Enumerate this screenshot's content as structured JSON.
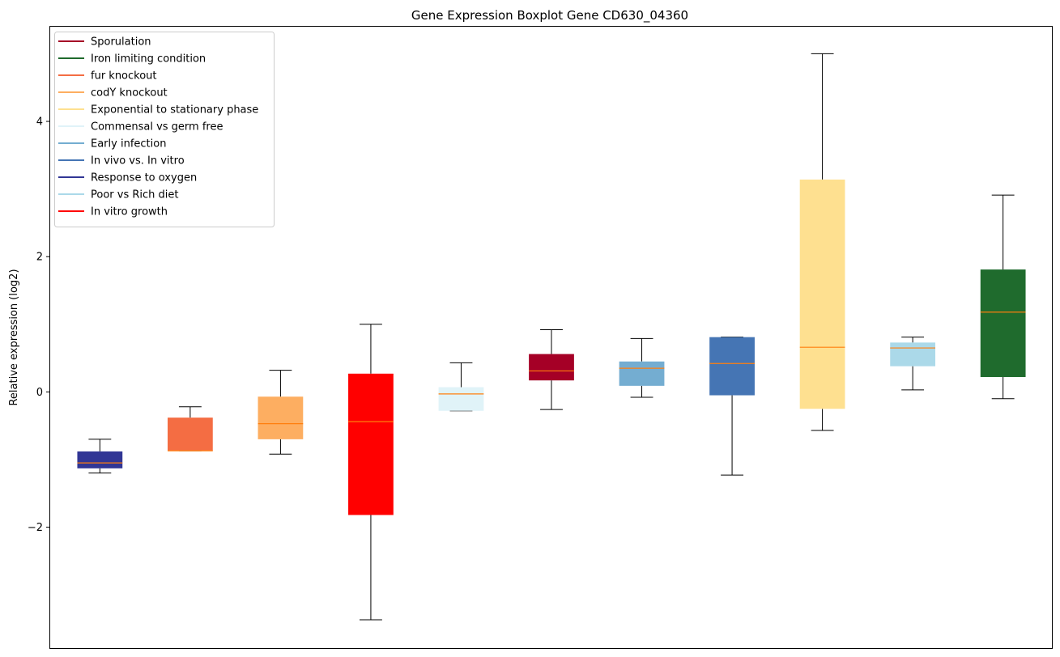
{
  "chart_data": {
    "type": "boxplot",
    "title": "Gene Expression Boxplot Gene CD630_04360",
    "xlabel": "",
    "ylabel": "Relative expression (log2)",
    "ylim": [
      -3.8,
      5.4
    ],
    "yticks": [
      -2,
      0,
      2,
      4
    ],
    "ytick_labels": [
      "−2",
      "0",
      "2",
      "4"
    ],
    "median_color": "#ff7f0e",
    "legend": {
      "placement": "top-left",
      "entries": [
        {
          "label": "Sporulation",
          "color": "#a50026"
        },
        {
          "label": "Iron limiting condition",
          "color": "#1f6b2d"
        },
        {
          "label": "fur knockout",
          "color": "#f46d43"
        },
        {
          "label": "codY knockout",
          "color": "#fdae61"
        },
        {
          "label": "Exponential to stationary phase",
          "color": "#fee090"
        },
        {
          "label": "Commensal vs germ free",
          "color": "#e0f3f8"
        },
        {
          "label": "Early infection",
          "color": "#74add1"
        },
        {
          "label": "In vivo vs. In vitro",
          "color": "#4575b4"
        },
        {
          "label": "Response to oxygen",
          "color": "#313695"
        },
        {
          "label": "Poor vs Rich diet",
          "color": "#abd9e9"
        },
        {
          "label": "In vitro growth",
          "color": "#ff0000"
        }
      ]
    },
    "boxes": [
      {
        "condition": "Response to oxygen",
        "color": "#313695",
        "whisker_low": -1.2,
        "q1": -1.13,
        "median": -1.05,
        "q3": -0.88,
        "whisker_high": -0.7
      },
      {
        "condition": "fur knockout",
        "color": "#f46d43",
        "whisker_low": -0.87,
        "q1": -0.87,
        "median": -0.87,
        "q3": -0.38,
        "whisker_high": -0.22
      },
      {
        "condition": "codY knockout",
        "color": "#fdae61",
        "whisker_low": -0.92,
        "q1": -0.7,
        "median": -0.47,
        "q3": -0.07,
        "whisker_high": 0.32
      },
      {
        "condition": "In vitro growth",
        "color": "#ff0000",
        "whisker_low": -3.37,
        "q1": -1.82,
        "median": -0.44,
        "q3": 0.27,
        "whisker_high": 1.0
      },
      {
        "condition": "Commensal vs germ free",
        "color": "#e0f3f8",
        "whisker_low": -0.28,
        "q1": -0.28,
        "median": -0.03,
        "q3": 0.07,
        "whisker_high": 0.43
      },
      {
        "condition": "Sporulation",
        "color": "#a50026",
        "whisker_low": -0.26,
        "q1": 0.17,
        "median": 0.31,
        "q3": 0.56,
        "whisker_high": 0.92
      },
      {
        "condition": "Early infection",
        "color": "#74add1",
        "whisker_low": -0.08,
        "q1": 0.09,
        "median": 0.35,
        "q3": 0.45,
        "whisker_high": 0.79
      },
      {
        "condition": "In vivo vs. In vitro",
        "color": "#4575b4",
        "whisker_low": -1.23,
        "q1": -0.05,
        "median": 0.42,
        "q3": 0.81,
        "whisker_high": 0.81
      },
      {
        "condition": "Exponential to stationary phase",
        "color": "#fee090",
        "whisker_low": -0.57,
        "q1": -0.25,
        "median": 0.66,
        "q3": 3.14,
        "whisker_high": 5.0
      },
      {
        "condition": "Poor vs Rich diet",
        "color": "#abd9e9",
        "whisker_low": 0.03,
        "q1": 0.38,
        "median": 0.65,
        "q3": 0.73,
        "whisker_high": 0.81
      },
      {
        "condition": "Iron limiting condition",
        "color": "#1f6b2d",
        "whisker_low": -0.1,
        "q1": 0.22,
        "median": 1.18,
        "q3": 1.81,
        "whisker_high": 2.91
      }
    ]
  }
}
